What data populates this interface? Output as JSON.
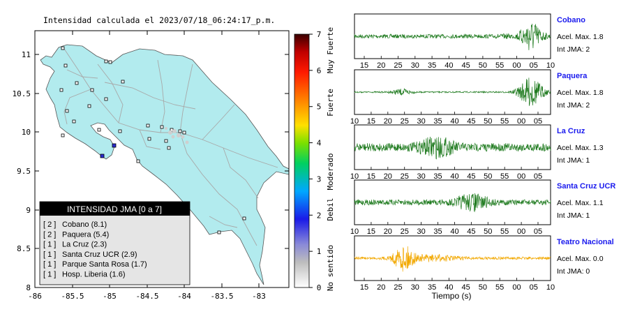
{
  "map": {
    "title": "Intensidad calculada el 2023/07/18_06:24:17_p.m.",
    "lon_ticks": [
      "-86",
      "-85.5",
      "-85",
      "-84.5",
      "-84",
      "-83.5",
      "-83"
    ],
    "lat_ticks": [
      "11",
      "10.5",
      "10",
      "9.5",
      "9",
      "8.5",
      "8"
    ],
    "land_color": "#b2ebee",
    "road_color": "#a8a8a8"
  },
  "colorbar": {
    "ticks": [
      "7",
      "6",
      "5",
      "4",
      "3",
      "2",
      "1",
      "0"
    ],
    "labels": [
      "Muy Fuerte",
      "Fuerte",
      "Moderado",
      "Debil",
      "No sentido"
    ]
  },
  "legend": {
    "title": "INTENSIDAD JMA [0 a 7]",
    "rows": [
      {
        "level": "[ 2 ]",
        "station": "Cobano (8.1)"
      },
      {
        "level": "[ 2 ]",
        "station": "Paquera (5.4)"
      },
      {
        "level": "[ 1 ]",
        "station": "La Cruz (2.3)"
      },
      {
        "level": "[ 1 ]",
        "station": "Santa Cruz UCR (2.9)"
      },
      {
        "level": "[ 1 ]",
        "station": "Parque Santa Rosa (1.7)"
      },
      {
        "level": "[ 1 ]",
        "station": "Hosp. Liberia (1.6)"
      }
    ]
  },
  "waveforms": {
    "xlabel": "Tiempo (s)",
    "panels": [
      {
        "station": "Cobano",
        "accel": "Acel. Max. 1.8",
        "jma": "Int JMA: 2",
        "color": "#1e7a1e",
        "ticks": [
          "15",
          "20",
          "25",
          "30",
          "35",
          "40",
          "45",
          "50",
          "55",
          "00",
          "05",
          "10"
        ]
      },
      {
        "station": "Paquera",
        "accel": "Acel. Max. 1.8",
        "jma": "Int JMA: 2",
        "color": "#1e7a1e",
        "ticks": [
          "10",
          "15",
          "20",
          "25",
          "30",
          "35",
          "40",
          "45",
          "50",
          "55",
          "00",
          "05"
        ]
      },
      {
        "station": "La Cruz",
        "accel": "Acel. Max. 1.3",
        "jma": "Int JMA: 1",
        "color": "#1e7a1e",
        "ticks": [
          "10",
          "15",
          "20",
          "25",
          "30",
          "35",
          "40",
          "45",
          "50",
          "55",
          "00",
          "05"
        ]
      },
      {
        "station": "Santa Cruz UCR",
        "accel": "Acel. Max. 1.1",
        "jma": "Int JMA: 1",
        "color": "#1e7a1e",
        "ticks": [
          "10",
          "15",
          "20",
          "25",
          "30",
          "35",
          "40",
          "45",
          "50",
          "55",
          "00",
          "05"
        ]
      },
      {
        "station": "Teatro Nacional",
        "accel": "Acel. Max. 0.0",
        "jma": "Int JMA: 0",
        "color": "#f2a800",
        "ticks": [
          "15",
          "20",
          "25",
          "30",
          "35",
          "40",
          "45",
          "50",
          "55",
          "00",
          "05",
          "10"
        ]
      }
    ]
  }
}
